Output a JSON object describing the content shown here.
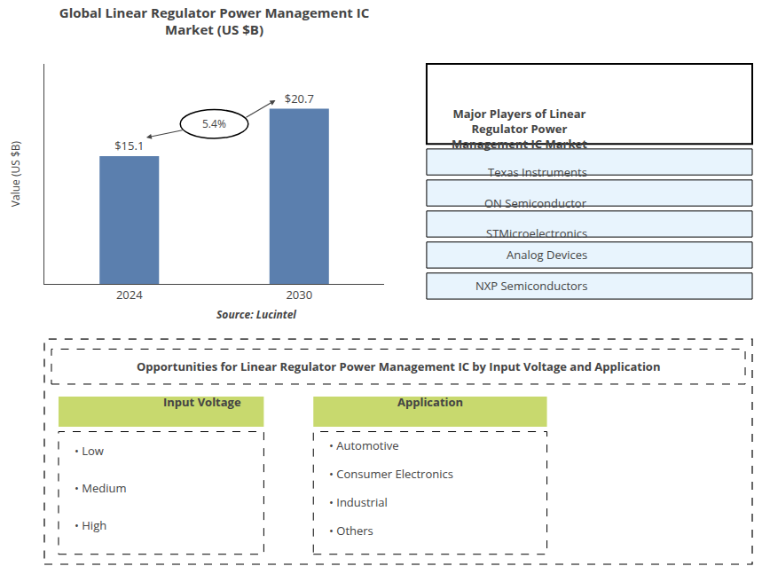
{
  "chart_data": {
    "type": "bar",
    "title": "Global Linear Regulator Power Management IC\nMarket (US $B)",
    "categories": [
      "2024",
      "2030"
    ],
    "values": [
      15.1,
      20.7
    ],
    "value_labels": [
      "$15.1",
      "$20.7"
    ],
    "data_labels": true,
    "color": "#5b7fae",
    "ylabel": "Value (US $B)",
    "ylim": [
      0,
      26
    ],
    "tick_labels": "x",
    "grid": false,
    "annotations": [
      "5.4%",
      "Source: Lucintel"
    ]
  },
  "panels": [
    {
      "title": "Major Players of Linear\nRegulator Power\nManagement IC Market",
      "items": [
        "Texas Instruments",
        "ON Semiconductor",
        "STMicroelectronics",
        "Analog Devices",
        "NXP Semiconductors"
      ],
      "color": "#e8f4fd"
    },
    {
      "title": "Opportunities for Linear Regulator Power Management IC by Input Voltage and Application",
      "groups": [
        {
          "title": "Input Voltage",
          "items": [
            "• Low",
            "• Medium",
            "• High"
          ],
          "color": "#c8d96e"
        },
        {
          "title": "Application",
          "items": [
            "• Automotive",
            "• Consumer Electronics",
            "• Industrial",
            "• Others"
          ],
          "color": "#c8d96e"
        }
      ]
    }
  ]
}
